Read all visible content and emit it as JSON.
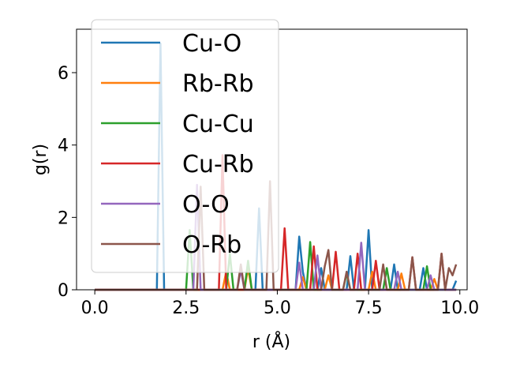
{
  "chart_data": {
    "type": "line",
    "title": "",
    "xlabel": "r (Å)",
    "ylabel": "g(r)",
    "xlim": [
      -0.5,
      10.2
    ],
    "ylim": [
      0,
      7.2
    ],
    "xticks": [
      0.0,
      2.5,
      5.0,
      7.5,
      10.0
    ],
    "xtick_labels": [
      "0.0",
      "2.5",
      "5.0",
      "7.5",
      "10.0"
    ],
    "yticks": [
      0,
      2,
      4,
      6
    ],
    "ytick_labels": [
      "0",
      "2",
      "4",
      "6"
    ],
    "grid": false,
    "legend_position": "upper-left",
    "series": [
      {
        "name": "Cu-O",
        "color": "#1f77b4",
        "points": [
          [
            0,
            0
          ],
          [
            1.7,
            0
          ],
          [
            1.8,
            6.8
          ],
          [
            1.9,
            0
          ],
          [
            4.4,
            0
          ],
          [
            4.5,
            2.25
          ],
          [
            4.6,
            0
          ],
          [
            5.5,
            0
          ],
          [
            5.6,
            1.47
          ],
          [
            5.7,
            0.5
          ],
          [
            5.8,
            0
          ],
          [
            6.1,
            0
          ],
          [
            6.2,
            0.6
          ],
          [
            6.3,
            0
          ],
          [
            6.9,
            0
          ],
          [
            7.0,
            0.93
          ],
          [
            7.1,
            0
          ],
          [
            7.4,
            0
          ],
          [
            7.5,
            1.65
          ],
          [
            7.6,
            0
          ],
          [
            8.1,
            0
          ],
          [
            8.2,
            0.7
          ],
          [
            8.3,
            0
          ],
          [
            8.9,
            0
          ],
          [
            9.0,
            0.6
          ],
          [
            9.1,
            0
          ],
          [
            9.8,
            0
          ],
          [
            9.9,
            0.25
          ]
        ]
      },
      {
        "name": "Rb-Rb",
        "color": "#ff7f0e",
        "points": [
          [
            0,
            0
          ],
          [
            3.5,
            0
          ],
          [
            3.6,
            0.5
          ],
          [
            3.7,
            0
          ],
          [
            4.1,
            0
          ],
          [
            4.2,
            0.6
          ],
          [
            4.3,
            0
          ],
          [
            5.6,
            0
          ],
          [
            5.7,
            0.35
          ],
          [
            5.8,
            0
          ],
          [
            6.3,
            0
          ],
          [
            6.4,
            0.4
          ],
          [
            6.5,
            0
          ],
          [
            7.5,
            0
          ],
          [
            7.6,
            0.5
          ],
          [
            7.7,
            0
          ],
          [
            8.3,
            0
          ],
          [
            8.4,
            0.45
          ],
          [
            8.5,
            0
          ],
          [
            9.2,
            0
          ],
          [
            9.3,
            0.3
          ],
          [
            9.4,
            0
          ],
          [
            9.9,
            0
          ]
        ]
      },
      {
        "name": "Cu-Cu",
        "color": "#2ca02c",
        "points": [
          [
            0,
            0
          ],
          [
            2.5,
            0
          ],
          [
            2.6,
            1.65
          ],
          [
            2.7,
            0
          ],
          [
            3.6,
            0
          ],
          [
            3.7,
            1.0
          ],
          [
            3.8,
            0
          ],
          [
            4.1,
            0
          ],
          [
            4.2,
            0.8
          ],
          [
            4.3,
            0
          ],
          [
            5.8,
            0
          ],
          [
            5.9,
            1.32
          ],
          [
            6.0,
            0
          ],
          [
            6.8,
            0
          ],
          [
            6.9,
            0.45
          ],
          [
            7.0,
            0
          ],
          [
            7.9,
            0
          ],
          [
            8.0,
            0.6
          ],
          [
            8.1,
            0
          ],
          [
            9.0,
            0
          ],
          [
            9.1,
            0.65
          ],
          [
            9.2,
            0
          ],
          [
            9.9,
            0
          ]
        ]
      },
      {
        "name": "Cu-Rb",
        "color": "#d62728",
        "points": [
          [
            0,
            0
          ],
          [
            3.4,
            0
          ],
          [
            3.5,
            3.72
          ],
          [
            3.6,
            0
          ],
          [
            5.1,
            0
          ],
          [
            5.2,
            1.7
          ],
          [
            5.3,
            0
          ],
          [
            5.9,
            0
          ],
          [
            6.0,
            1.2
          ],
          [
            6.1,
            0
          ],
          [
            6.5,
            0
          ],
          [
            6.6,
            1.05
          ],
          [
            6.7,
            0
          ],
          [
            7.1,
            0
          ],
          [
            7.2,
            1.0
          ],
          [
            7.3,
            0
          ],
          [
            7.6,
            0
          ],
          [
            7.7,
            0.8
          ],
          [
            7.8,
            0
          ],
          [
            8.6,
            0
          ],
          [
            8.7,
            0.9
          ],
          [
            8.8,
            0
          ],
          [
            9.4,
            0
          ],
          [
            9.5,
            1.0
          ],
          [
            9.6,
            0
          ],
          [
            9.9,
            0
          ]
        ]
      },
      {
        "name": "O-O",
        "color": "#9467bd",
        "points": [
          [
            0,
            0
          ],
          [
            2.7,
            0
          ],
          [
            2.8,
            2.9
          ],
          [
            2.9,
            0
          ],
          [
            3.9,
            0
          ],
          [
            4.0,
            0.55
          ],
          [
            4.1,
            0
          ],
          [
            5.5,
            0
          ],
          [
            5.6,
            0.75
          ],
          [
            5.7,
            0
          ],
          [
            6.0,
            0
          ],
          [
            6.1,
            0.95
          ],
          [
            6.2,
            0
          ],
          [
            7.2,
            0
          ],
          [
            7.3,
            1.3
          ],
          [
            7.4,
            0
          ],
          [
            8.2,
            0
          ],
          [
            8.3,
            0.5
          ],
          [
            8.4,
            0
          ],
          [
            9.1,
            0
          ],
          [
            9.2,
            0.4
          ],
          [
            9.3,
            0
          ],
          [
            9.9,
            0
          ]
        ]
      },
      {
        "name": "O-Rb",
        "color": "#8c564b",
        "points": [
          [
            0,
            0
          ],
          [
            2.8,
            0
          ],
          [
            2.9,
            2.85
          ],
          [
            3.0,
            0
          ],
          [
            3.9,
            0
          ],
          [
            4.0,
            0.7
          ],
          [
            4.1,
            0
          ],
          [
            4.7,
            0
          ],
          [
            4.8,
            3.0
          ],
          [
            4.9,
            0
          ],
          [
            6.2,
            0
          ],
          [
            6.3,
            0.65
          ],
          [
            6.4,
            1.1
          ],
          [
            6.5,
            0
          ],
          [
            6.8,
            0
          ],
          [
            6.9,
            0.5
          ],
          [
            7.0,
            0
          ],
          [
            7.8,
            0
          ],
          [
            7.9,
            0.7
          ],
          [
            8.0,
            0
          ],
          [
            8.6,
            0
          ],
          [
            8.7,
            0.9
          ],
          [
            8.8,
            0
          ],
          [
            9.4,
            0
          ],
          [
            9.5,
            1.0
          ],
          [
            9.6,
            0
          ],
          [
            9.7,
            0.6
          ],
          [
            9.8,
            0.4
          ],
          [
            9.9,
            0.7
          ]
        ]
      }
    ]
  }
}
